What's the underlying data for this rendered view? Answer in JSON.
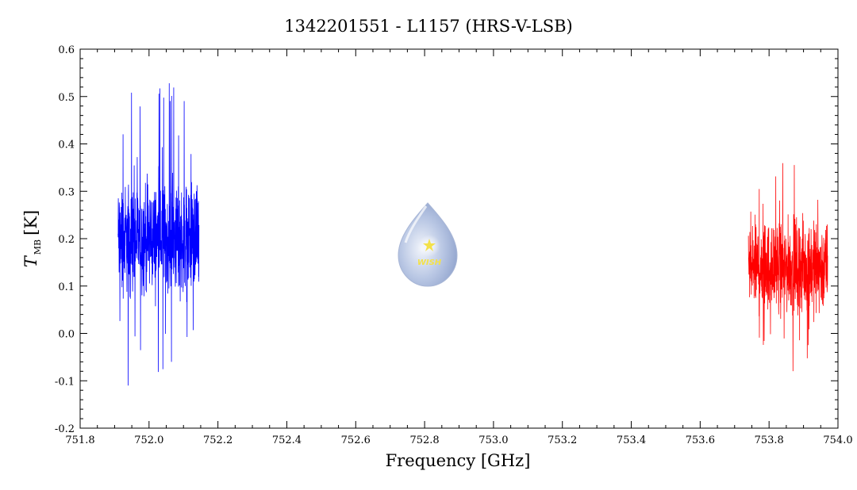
{
  "chart_data": {
    "type": "line",
    "title": "1342201551 - L1157 (HRS-V-LSB)",
    "xlabel": "Frequency [GHz]",
    "ylabel_main": "T",
    "ylabel_sub": "MB",
    "ylabel_unit": "[K]",
    "xlim": [
      751.8,
      754.0
    ],
    "ylim": [
      -0.2,
      0.6
    ],
    "xticks": [
      "751.8",
      "752.0",
      "752.2",
      "752.4",
      "752.6",
      "752.8",
      "753.0",
      "753.2",
      "753.4",
      "753.6",
      "753.8",
      "754.0"
    ],
    "yticks": [
      "-0.2",
      "-0.1",
      "0.0",
      "0.1",
      "0.2",
      "0.3",
      "0.4",
      "0.5",
      "0.6"
    ],
    "grid": false,
    "logo_text": "WISH",
    "series": [
      {
        "color": "#0000ff",
        "x_range": [
          751.91,
          752.145
        ],
        "mean": 0.2,
        "envelope_low": 0.05,
        "envelope_high": 0.35,
        "min": -0.11,
        "max": 0.53
      },
      {
        "color": "#ff0000",
        "x_range": [
          753.74,
          753.97
        ],
        "mean": 0.14,
        "envelope_low": 0.02,
        "envelope_high": 0.27,
        "min": -0.11,
        "max": 0.36
      }
    ]
  }
}
